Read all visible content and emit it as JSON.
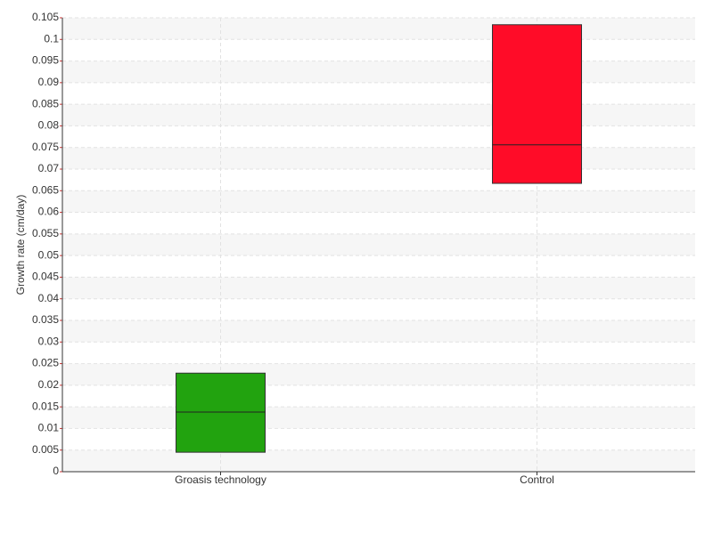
{
  "chart_data": {
    "type": "box",
    "y_label": "Growth rate (cm/day)",
    "categories": [
      "Groasis technology",
      "Control"
    ],
    "colors": [
      "#22a30f",
      "#ff0c28"
    ],
    "low": [
      0.0045,
      0.0667
    ],
    "median": [
      0.0138,
      0.0756
    ],
    "high": [
      0.0228,
      0.1034
    ],
    "ylim": [
      0,
      0.105
    ],
    "yticks": [
      0,
      0.005,
      0.01,
      0.015,
      0.02,
      0.025,
      0.03,
      0.035,
      0.04,
      0.045,
      0.05,
      0.055,
      0.06,
      0.065,
      0.07,
      0.075,
      0.08,
      0.085,
      0.09,
      0.095,
      0.1,
      0.105
    ],
    "grid": true
  }
}
